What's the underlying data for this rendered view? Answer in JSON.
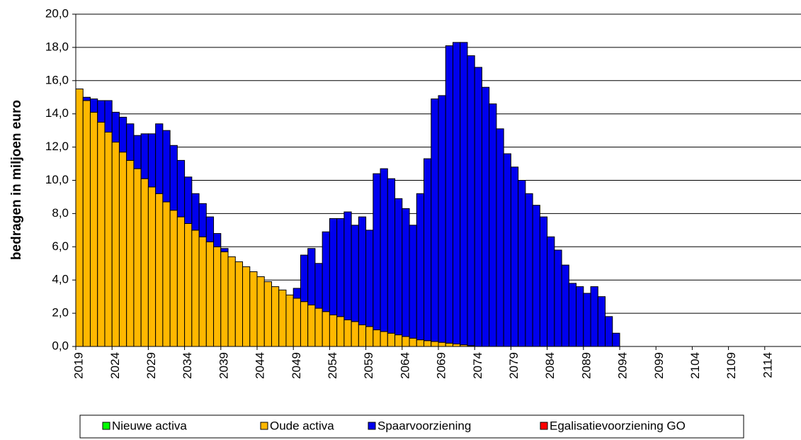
{
  "chart_data": {
    "type": "stacked_bar",
    "y_label": "bedragen in miljoen euro",
    "categories": [
      "2019",
      null,
      null,
      null,
      null,
      "2024",
      null,
      null,
      null,
      null,
      "2029",
      null,
      null,
      null,
      null,
      "2034",
      null,
      null,
      null,
      null,
      "2039",
      null,
      null,
      null,
      null,
      "2044",
      null,
      null,
      null,
      null,
      "2049",
      null,
      null,
      null,
      null,
      "2054",
      null,
      null,
      null,
      null,
      "2059",
      null,
      null,
      null,
      null,
      "2064",
      null,
      null,
      null,
      null,
      "2069",
      null,
      null,
      null,
      null,
      "2074",
      null,
      null,
      null,
      null,
      "2079",
      null,
      null,
      null,
      null,
      "2084",
      null,
      null,
      null,
      null,
      "2089",
      null,
      null,
      null,
      null,
      "2094",
      null,
      null,
      null,
      null,
      "2099",
      null,
      null,
      null,
      null,
      "2104",
      null,
      null,
      null,
      null,
      "2109",
      null,
      null,
      null,
      null,
      "2114",
      null,
      null,
      null,
      null
    ],
    "series": [
      {
        "name": "Nieuwe activa",
        "color": "#00ff00",
        "values": [
          0,
          0,
          0,
          0,
          0,
          0,
          0,
          0,
          0,
          0,
          0,
          0,
          0,
          0,
          0,
          0,
          0,
          0,
          0,
          0,
          0,
          0,
          0,
          0,
          0,
          0,
          0,
          0,
          0,
          0,
          0,
          0,
          0,
          0,
          0,
          0,
          0,
          0,
          0,
          0,
          0,
          0,
          0,
          0,
          0,
          0,
          0,
          0,
          0,
          0,
          0,
          0,
          0,
          0,
          0,
          0,
          0,
          0,
          0,
          0,
          0,
          0,
          0,
          0,
          0,
          0,
          0,
          0,
          0,
          0,
          0,
          0,
          0,
          0,
          0,
          0,
          0,
          0,
          0,
          0,
          0,
          0,
          0,
          0,
          0,
          0,
          0,
          0,
          0,
          0,
          0,
          0,
          0,
          0,
          0,
          0,
          0,
          0,
          0,
          0
        ]
      },
      {
        "name": "Oude activa",
        "color": "#ffb800",
        "values": [
          15.5,
          14.8,
          14.1,
          13.5,
          12.9,
          12.3,
          11.7,
          11.2,
          10.7,
          10.1,
          9.6,
          9.2,
          8.7,
          8.2,
          7.8,
          7.4,
          7.0,
          6.6,
          6.3,
          6.0,
          5.7,
          5.4,
          5.1,
          4.8,
          4.5,
          4.2,
          3.9,
          3.6,
          3.4,
          3.1,
          2.9,
          2.7,
          2.5,
          2.3,
          2.1,
          1.9,
          1.8,
          1.6,
          1.5,
          1.3,
          1.2,
          1.0,
          0.9,
          0.8,
          0.7,
          0.6,
          0.5,
          0.4,
          0.35,
          0.3,
          0.25,
          0.2,
          0.15,
          0.1,
          0.05,
          0,
          0,
          0,
          0,
          0,
          0,
          0,
          0,
          0,
          0,
          0,
          0,
          0,
          0,
          0,
          0,
          0,
          0,
          0,
          0,
          0,
          0,
          0,
          0,
          0,
          0,
          0,
          0,
          0,
          0,
          0,
          0,
          0,
          0,
          0,
          0,
          0,
          0,
          0,
          0,
          0,
          0,
          0,
          0,
          0
        ]
      },
      {
        "name": "Spaarvoorziening",
        "color": "#0000ee",
        "values": [
          0,
          0.2,
          0.8,
          1.3,
          1.9,
          1.8,
          2.1,
          2.2,
          2.0,
          2.7,
          3.2,
          4.2,
          4.3,
          3.9,
          3.4,
          2.8,
          2.2,
          2.0,
          1.5,
          0.8,
          0.2,
          0,
          0,
          0,
          0,
          0,
          0,
          0,
          0,
          0,
          0.6,
          2.8,
          3.4,
          2.7,
          4.8,
          5.8,
          5.9,
          6.5,
          5.8,
          6.5,
          5.8,
          9.4,
          9.8,
          9.3,
          8.2,
          7.7,
          6.8,
          8.8,
          10.95,
          14.6,
          14.85,
          17.9,
          18.15,
          18.2,
          17.45,
          16.8,
          15.6,
          14.6,
          13.1,
          11.6,
          10.8,
          10.0,
          9.2,
          8.5,
          7.8,
          6.6,
          5.8,
          4.9,
          3.8,
          3.6,
          3.2,
          3.6,
          3.0,
          1.8,
          0.8,
          0,
          0,
          0,
          0,
          0,
          0,
          0,
          0,
          0,
          0,
          0,
          0,
          0,
          0,
          0,
          0,
          0,
          0,
          0,
          0,
          0,
          0,
          0,
          0,
          0
        ]
      },
      {
        "name": "Egalisatievoorziening GO",
        "color": "#ff0000",
        "values": [
          0,
          0,
          0,
          0,
          0,
          0,
          0,
          0,
          0,
          0,
          0,
          0,
          0,
          0,
          0,
          0,
          0,
          0,
          0,
          0,
          0,
          0,
          0,
          0,
          0,
          0,
          0,
          0,
          0,
          0,
          0,
          0,
          0,
          0,
          0,
          0,
          0,
          0,
          0,
          0,
          0,
          0,
          0,
          0,
          0,
          0,
          0,
          0,
          0,
          0,
          0,
          0,
          0,
          0,
          0,
          0,
          0,
          0,
          0,
          0,
          0,
          0,
          0,
          0,
          0,
          0,
          0,
          0,
          0,
          0,
          0,
          0,
          0,
          0,
          0,
          0,
          0,
          0,
          0,
          0,
          0,
          0,
          0,
          0,
          0,
          0,
          0,
          0,
          0,
          0,
          0,
          0,
          0,
          0,
          0,
          0,
          0,
          0,
          0,
          0
        ]
      }
    ],
    "ylim": [
      0,
      20
    ],
    "yticks": [
      {
        "value": 0,
        "label": "0,0"
      },
      {
        "value": 2,
        "label": "2,0"
      },
      {
        "value": 4,
        "label": "4,0"
      },
      {
        "value": 6,
        "label": "6,0"
      },
      {
        "value": 8,
        "label": "8,0"
      },
      {
        "value": 10,
        "label": "10,0"
      },
      {
        "value": 12,
        "label": "12,0"
      },
      {
        "value": 14,
        "label": "14,0"
      },
      {
        "value": 16,
        "label": "16,0"
      },
      {
        "value": 18,
        "label": "18,0"
      },
      {
        "value": 20,
        "label": "20,0"
      }
    ],
    "grid": true,
    "legend": "bottom"
  }
}
